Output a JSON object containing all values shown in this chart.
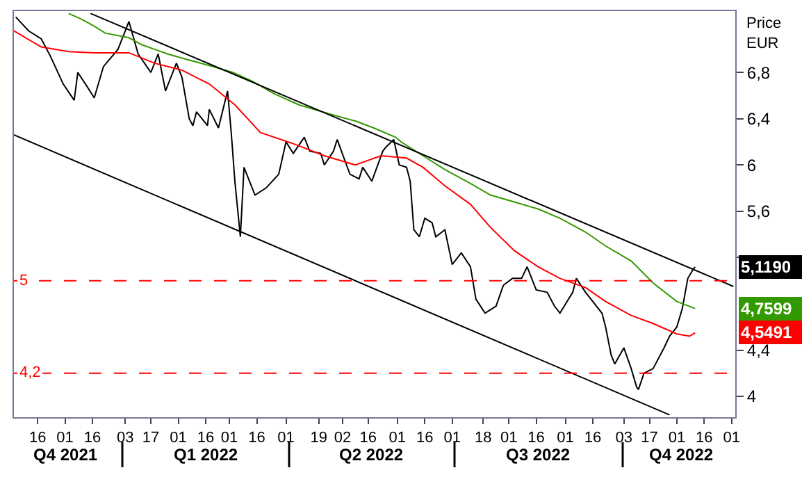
{
  "chart_data": {
    "type": "line",
    "ylabel": "Price EUR",
    "xlim": [
      "2021-11-03",
      "2022-12-03"
    ],
    "ylim": [
      3.82,
      7.33
    ],
    "yticks": [
      {
        "value": 4,
        "label": "4"
      },
      {
        "value": 4.4,
        "label": "4,4"
      },
      {
        "value": 5.2,
        "label": null
      },
      {
        "value": 5.6,
        "label": "5,6"
      },
      {
        "value": 6,
        "label": "6"
      },
      {
        "value": 6.4,
        "label": "6,4"
      },
      {
        "value": 6.8,
        "label": "6,8"
      }
    ],
    "xticks": [
      {
        "value": "2021-11-16",
        "label": "16"
      },
      {
        "value": "2021-12-01",
        "label": "01"
      },
      {
        "value": "2021-12-16",
        "label": "16"
      },
      {
        "value": "2022-01-03",
        "label": "03"
      },
      {
        "value": "2022-01-17",
        "label": "17"
      },
      {
        "value": "2022-02-01",
        "label": "01"
      },
      {
        "value": "2022-02-16",
        "label": "16"
      },
      {
        "value": "2022-03-01",
        "label": "01"
      },
      {
        "value": "2022-03-16",
        "label": "16"
      },
      {
        "value": "2022-04-01",
        "label": "01"
      },
      {
        "value": "2022-04-19",
        "label": "19"
      },
      {
        "value": "2022-05-02",
        "label": "02"
      },
      {
        "value": "2022-05-16",
        "label": "16"
      },
      {
        "value": "2022-06-01",
        "label": "01"
      },
      {
        "value": "2022-06-16",
        "label": "16"
      },
      {
        "value": "2022-07-01",
        "label": "01"
      },
      {
        "value": "2022-07-18",
        "label": "18"
      },
      {
        "value": "2022-08-01",
        "label": "01"
      },
      {
        "value": "2022-08-16",
        "label": "16"
      },
      {
        "value": "2022-09-01",
        "label": "01"
      },
      {
        "value": "2022-09-16",
        "label": "16"
      },
      {
        "value": "2022-10-03",
        "label": "03"
      },
      {
        "value": "2022-10-17",
        "label": "17"
      },
      {
        "value": "2022-11-01",
        "label": "01"
      },
      {
        "value": "2022-11-16",
        "label": "16"
      },
      {
        "value": "2022-12-01",
        "label": "01"
      }
    ],
    "series": [
      {
        "color": "#000000",
        "x": [
          "2021-11-04",
          "2021-11-11",
          "2021-11-18",
          "2021-11-23",
          "2021-11-30",
          "2021-12-06",
          "2021-12-08",
          "2021-12-13",
          "2021-12-17",
          "2021-12-22",
          "2021-12-30",
          "2022-01-05",
          "2022-01-10",
          "2022-01-17",
          "2022-01-21",
          "2022-01-25",
          "2022-01-31",
          "2022-02-03",
          "2022-02-07",
          "2022-02-09",
          "2022-02-11",
          "2022-02-17",
          "2022-02-18",
          "2022-02-23",
          "2022-02-28",
          "2022-03-02",
          "2022-03-04",
          "2022-03-07",
          "2022-03-09",
          "2022-03-15",
          "2022-03-21",
          "2022-03-28",
          "2022-04-01",
          "2022-04-05",
          "2022-04-11",
          "2022-04-14",
          "2022-04-20",
          "2022-04-22",
          "2022-04-27",
          "2022-04-29",
          "2022-05-06",
          "2022-05-11",
          "2022-05-13",
          "2022-05-18",
          "2022-05-24",
          "2022-05-26",
          "2022-05-30",
          "2022-06-02",
          "2022-06-06",
          "2022-06-08",
          "2022-06-10",
          "2022-06-13",
          "2022-06-16",
          "2022-06-20",
          "2022-06-22",
          "2022-06-27",
          "2022-07-01",
          "2022-07-06",
          "2022-07-11",
          "2022-07-14",
          "2022-07-19",
          "2022-07-25",
          "2022-07-29",
          "2022-08-03",
          "2022-08-08",
          "2022-08-11",
          "2022-08-16",
          "2022-08-22",
          "2022-08-26",
          "2022-08-29",
          "2022-09-05",
          "2022-09-07",
          "2022-09-12",
          "2022-09-15",
          "2022-09-21",
          "2022-09-23",
          "2022-09-26",
          "2022-09-28",
          "2022-10-03",
          "2022-10-07",
          "2022-10-10",
          "2022-10-11",
          "2022-10-14",
          "2022-10-19",
          "2022-10-25",
          "2022-10-28",
          "2022-11-01",
          "2022-11-04",
          "2022-11-07",
          "2022-11-10",
          "2022-11-11"
        ],
        "values": [
          7.28,
          7.16,
          7.09,
          6.94,
          6.7,
          6.56,
          6.8,
          6.68,
          6.58,
          6.85,
          7.0,
          7.24,
          6.96,
          6.8,
          6.96,
          6.64,
          6.88,
          6.76,
          6.4,
          6.34,
          6.46,
          6.34,
          6.48,
          6.32,
          6.64,
          6.28,
          5.86,
          5.38,
          5.98,
          5.74,
          5.8,
          5.92,
          6.2,
          6.1,
          6.24,
          6.12,
          6.1,
          6.0,
          6.12,
          6.22,
          5.92,
          5.88,
          5.98,
          5.86,
          6.12,
          6.16,
          6.22,
          6.0,
          5.98,
          5.86,
          5.44,
          5.38,
          5.54,
          5.5,
          5.38,
          5.44,
          5.14,
          5.24,
          5.12,
          4.84,
          4.72,
          4.78,
          4.96,
          5.02,
          5.02,
          5.12,
          4.92,
          4.9,
          4.78,
          4.72,
          4.9,
          5.02,
          4.9,
          4.84,
          4.72,
          4.6,
          4.36,
          4.28,
          4.42,
          4.24,
          4.08,
          4.06,
          4.2,
          4.24,
          4.42,
          4.52,
          4.6,
          4.76,
          5.02,
          5.1,
          5.119
        ]
      },
      {
        "color": "#339900",
        "x": [
          "2021-12-03",
          "2021-12-10",
          "2021-12-17",
          "2021-12-23",
          "2022-01-05",
          "2022-01-12",
          "2022-01-19",
          "2022-01-26",
          "2022-02-04",
          "2022-02-18",
          "2022-03-03",
          "2022-03-14",
          "2022-03-25",
          "2022-04-08",
          "2022-04-25",
          "2022-05-09",
          "2022-05-19",
          "2022-05-31",
          "2022-06-03",
          "2022-06-15",
          "2022-06-27",
          "2022-07-11",
          "2022-07-22",
          "2022-08-04",
          "2022-08-17",
          "2022-08-29",
          "2022-09-12",
          "2022-09-23",
          "2022-10-07",
          "2022-10-19",
          "2022-11-01",
          "2022-11-11"
        ],
        "values": [
          7.31,
          7.26,
          7.2,
          7.14,
          7.1,
          7.04,
          7.0,
          6.96,
          6.92,
          6.86,
          6.8,
          6.72,
          6.62,
          6.52,
          6.44,
          6.38,
          6.32,
          6.24,
          6.2,
          6.08,
          5.96,
          5.84,
          5.74,
          5.68,
          5.62,
          5.54,
          5.42,
          5.3,
          5.17,
          4.98,
          4.82,
          4.7599
        ]
      },
      {
        "color": "#ff0000",
        "x": [
          "2021-11-03",
          "2021-11-18",
          "2021-12-03",
          "2021-12-17",
          "2022-01-05",
          "2022-01-19",
          "2022-02-03",
          "2022-02-18",
          "2022-03-04",
          "2022-03-18",
          "2022-04-04",
          "2022-04-22",
          "2022-05-09",
          "2022-05-23",
          "2022-06-06",
          "2022-06-15",
          "2022-06-27",
          "2022-07-11",
          "2022-07-22",
          "2022-08-04",
          "2022-08-17",
          "2022-08-29",
          "2022-09-12",
          "2022-09-23",
          "2022-10-07",
          "2022-10-19",
          "2022-11-01",
          "2022-11-08",
          "2022-11-11"
        ],
        "values": [
          7.16,
          7.02,
          6.98,
          6.97,
          6.97,
          6.88,
          6.82,
          6.7,
          6.52,
          6.28,
          6.19,
          6.08,
          6.0,
          6.08,
          6.06,
          5.98,
          5.82,
          5.66,
          5.46,
          5.26,
          5.12,
          5.02,
          4.94,
          4.82,
          4.7,
          4.63,
          4.54,
          4.52,
          4.5491
        ]
      },
      {
        "color": "#000000",
        "x": [
          "2021-12-15",
          "2022-12-02"
        ],
        "values": [
          7.31,
          4.95
        ]
      },
      {
        "color": "#000000",
        "x": [
          "2021-11-03",
          "2022-10-28"
        ],
        "values": [
          6.26,
          3.84
        ]
      }
    ],
    "ref_lines": [
      {
        "axis": "y",
        "value": 5,
        "label": "5",
        "color": "#ff0000",
        "line_style": "dashed"
      },
      {
        "axis": "y",
        "value": 4.2,
        "label": "4,2",
        "color": "#ff0000",
        "line_style": "dashed"
      }
    ],
    "annotations": [
      {
        "text": "5,1190",
        "x": "2022-11-11",
        "y": 5.119
      },
      {
        "text": "4,7599",
        "x": "2022-11-11",
        "y": 4.7599
      },
      {
        "text": "4,5491",
        "x": "2022-11-11",
        "y": 4.5491
      },
      "Q4 2021",
      "Q1 2022",
      "Q2 2022",
      "Q3 2022",
      "Q4 2022"
    ],
    "marker": "none",
    "line_style": "solid"
  }
}
